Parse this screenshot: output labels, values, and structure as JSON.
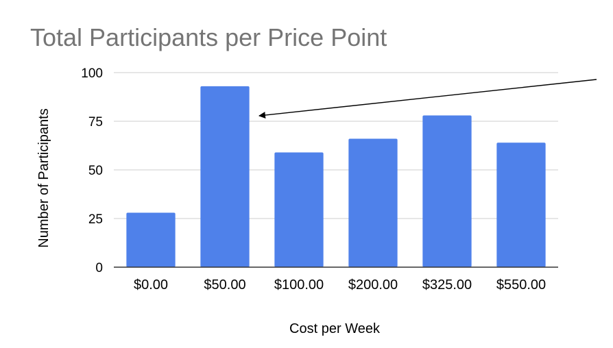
{
  "chart_data": {
    "type": "bar",
    "title": "Total Participants per Price Point",
    "xlabel": "Cost per Week",
    "ylabel": "Number of Participants",
    "categories": [
      "$0.00",
      "$50.00",
      "$100.00",
      "$200.00",
      "$325.00",
      "$550.00"
    ],
    "series": [
      {
        "values": [
          28,
          93,
          59,
          66,
          78,
          64
        ]
      }
    ],
    "ylim": [
      0,
      100
    ],
    "yticks": [
      "0",
      "25",
      "50",
      "75",
      "100"
    ],
    "grid": true,
    "bar_color": "#4f81ea",
    "annotation": {
      "type": "arrow",
      "target_category": "$50.00"
    }
  }
}
